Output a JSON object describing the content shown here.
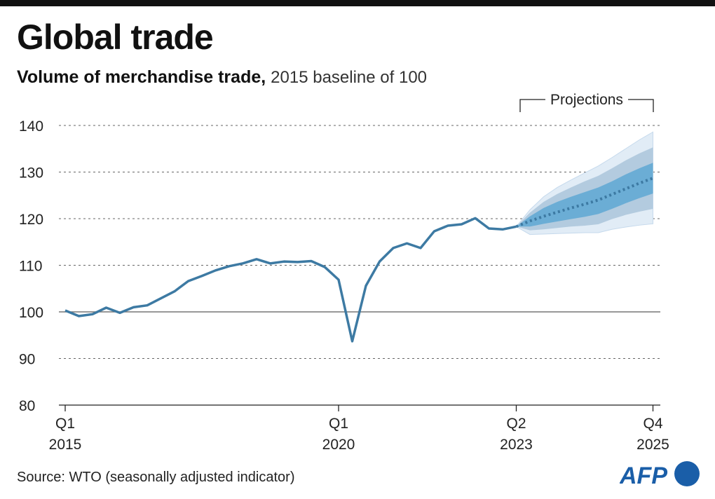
{
  "title": "Global trade",
  "subtitle_bold": "Volume of merchandise trade,",
  "subtitle_normal": "2015 baseline of 100",
  "source": "Source: WTO (seasonally adjusted indicator)",
  "logo": "AFP",
  "colors": {
    "line": "#3d7aa3",
    "outer": "#e1ecf6",
    "mid": "#b3cbdf",
    "inner": "#6badd5",
    "axis": "#222",
    "logo": "#1a5ea8"
  },
  "chart_data": {
    "type": "line",
    "title": "Global trade",
    "ylim": [
      80,
      140
    ],
    "yticks": [
      80,
      90,
      100,
      110,
      120,
      130,
      140
    ],
    "grid": true,
    "projection_label": "Projections",
    "xticks": [
      {
        "quarter": "Q1",
        "year": "2015",
        "index": 0
      },
      {
        "quarter": "Q1",
        "year": "2020",
        "index": 20
      },
      {
        "quarter": "Q2",
        "year": "2023",
        "index": 33
      },
      {
        "quarter": "Q4",
        "year": "2025",
        "index": 43
      }
    ],
    "series": [
      {
        "values": [
          100.3,
          99.1,
          99.5,
          100.9,
          99.8,
          101.0,
          101.4,
          102.9,
          104.4,
          106.6,
          107.7,
          108.9,
          109.8,
          110.4,
          111.3,
          110.4,
          110.8,
          110.7,
          110.9,
          109.6,
          106.9,
          93.7,
          105.6,
          110.8,
          113.7,
          114.7,
          113.7,
          117.3,
          118.5,
          118.8,
          120.1,
          117.9,
          117.7,
          118.3
        ]
      }
    ],
    "projection": {
      "start_index": 33,
      "median": [
        118.3,
        119.5,
        120.5,
        121.4,
        122.3,
        123.1,
        124.0,
        125.2,
        126.4,
        127.6,
        128.7
      ],
      "inner_upper": [
        118.3,
        120.5,
        122.3,
        123.6,
        124.7,
        125.7,
        126.7,
        128.0,
        129.5,
        130.8,
        132.0
      ],
      "inner_lower": [
        118.3,
        118.3,
        118.9,
        119.4,
        119.9,
        120.4,
        121.0,
        122.1,
        123.3,
        124.4,
        125.4
      ],
      "mid_upper": [
        118.3,
        121.3,
        123.6,
        125.3,
        126.7,
        128.0,
        129.2,
        130.8,
        132.5,
        134.0,
        135.3
      ],
      "mid_lower": [
        118.3,
        117.5,
        117.7,
        118.0,
        118.3,
        118.5,
        118.8,
        119.9,
        120.8,
        121.5,
        122.1
      ],
      "outer_upper": [
        118.3,
        121.9,
        124.7,
        126.7,
        128.3,
        129.8,
        131.3,
        133.1,
        135.0,
        136.9,
        138.6
      ],
      "outer_lower": [
        118.3,
        116.6,
        116.7,
        116.8,
        116.9,
        117.0,
        117.0,
        117.7,
        118.2,
        118.6,
        118.9
      ]
    }
  }
}
